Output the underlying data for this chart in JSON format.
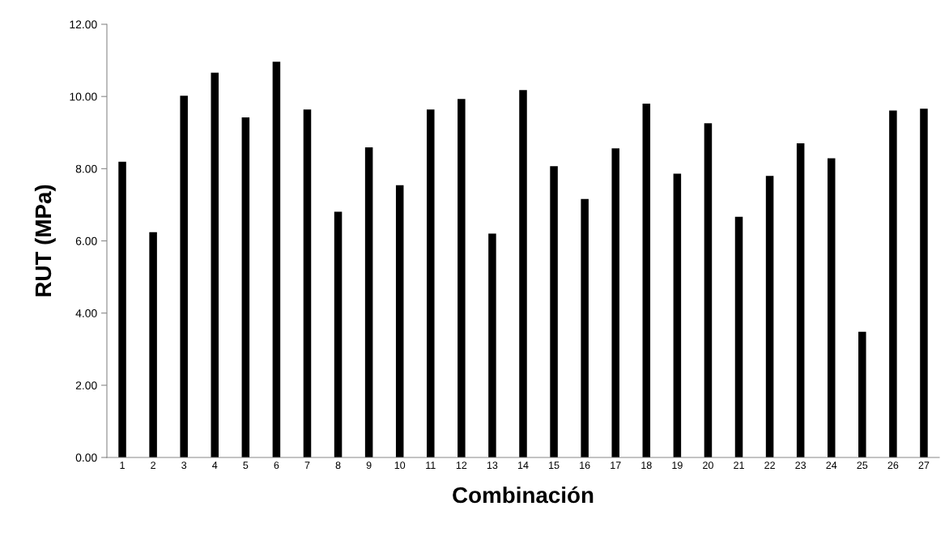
{
  "chart_data": {
    "type": "bar",
    "xlabel": "Combinación",
    "ylabel": "RUT (MPa)",
    "categories": [
      "1",
      "2",
      "3",
      "4",
      "5",
      "6",
      "7",
      "8",
      "9",
      "10",
      "11",
      "12",
      "13",
      "14",
      "15",
      "16",
      "17",
      "18",
      "19",
      "20",
      "21",
      "22",
      "23",
      "24",
      "25",
      "26",
      "27"
    ],
    "values": [
      8.19,
      6.24,
      10.02,
      10.66,
      9.42,
      10.96,
      9.64,
      6.81,
      8.59,
      7.54,
      9.64,
      9.93,
      6.2,
      10.18,
      8.07,
      7.16,
      8.56,
      9.8,
      7.86,
      9.26,
      6.67,
      7.8,
      8.7,
      8.29,
      3.48,
      9.61,
      9.66
    ],
    "color": "#000000",
    "ylim": [
      0,
      12
    ],
    "yticks": [
      {
        "value": 0,
        "label": "0.00"
      },
      {
        "value": 2,
        "label": "2.00"
      },
      {
        "value": 4,
        "label": "4.00"
      },
      {
        "value": 6,
        "label": "6.00"
      },
      {
        "value": 8,
        "label": "8.00"
      },
      {
        "value": 10,
        "label": "10.00"
      },
      {
        "value": 12,
        "label": "12.00"
      }
    ],
    "grid": false,
    "legend": false
  }
}
